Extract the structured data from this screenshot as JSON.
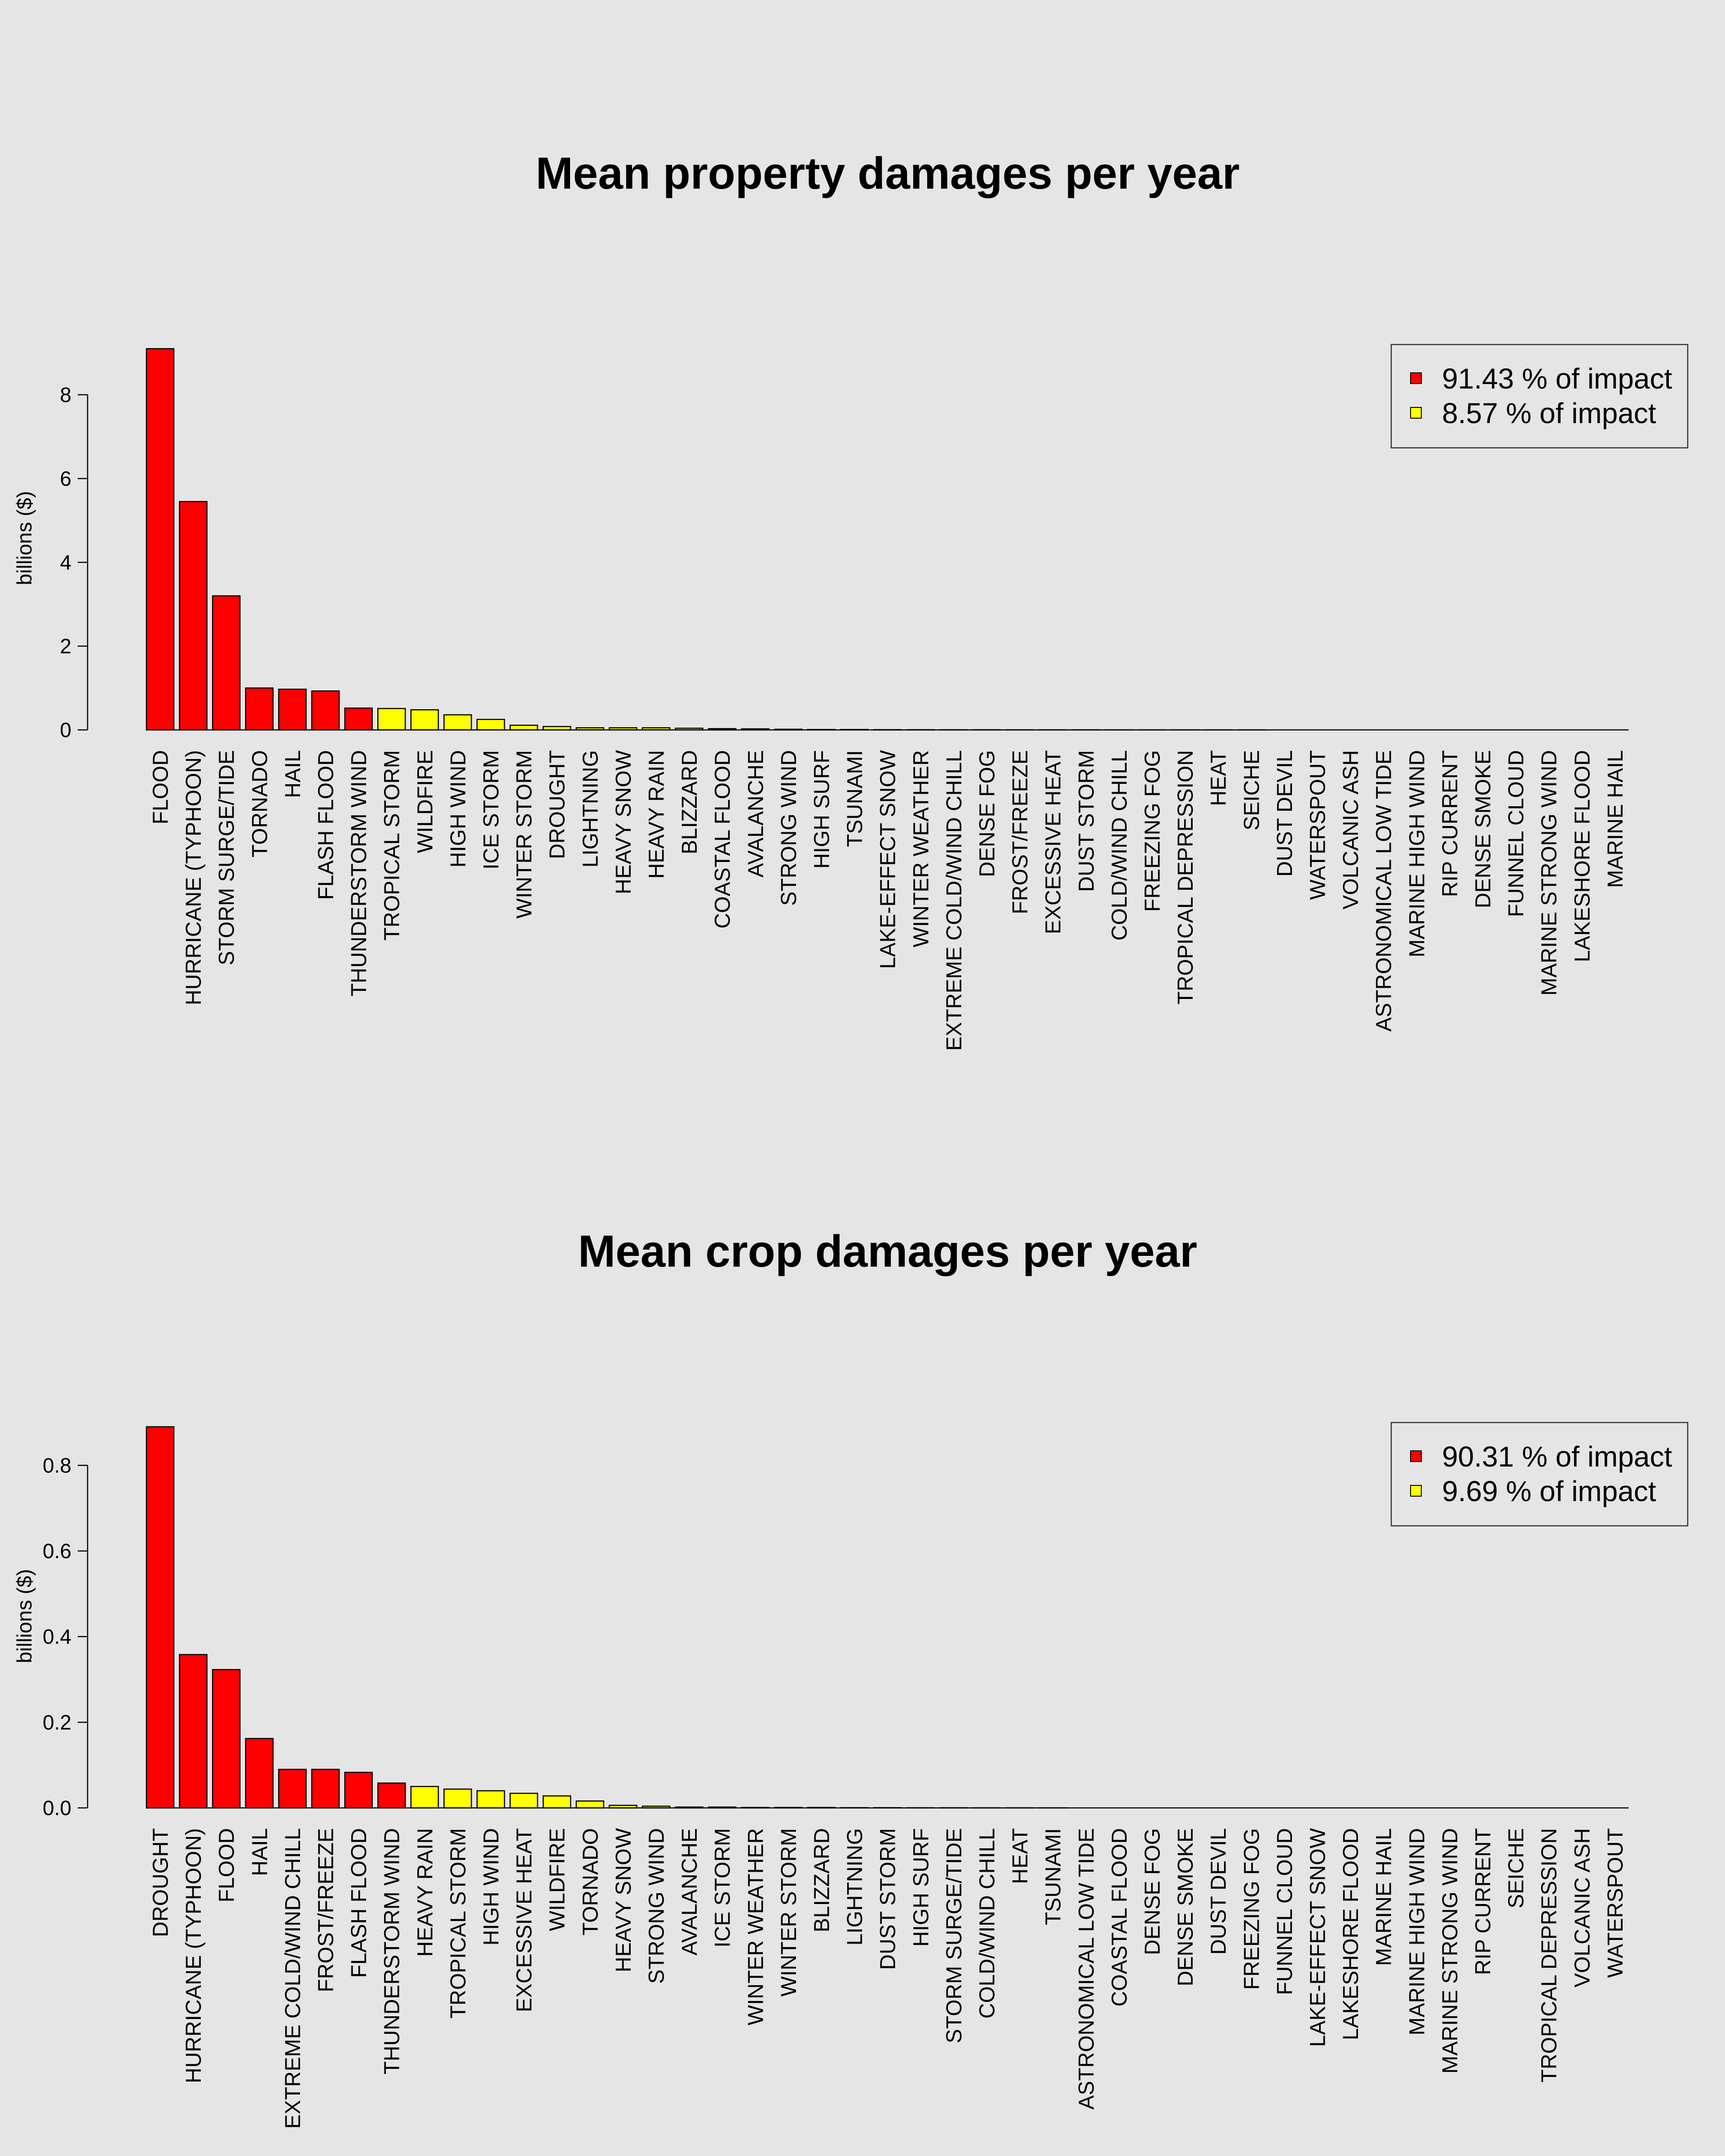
{
  "chart_data": [
    {
      "type": "bar",
      "title": "Mean property damages per year",
      "xlabel": "",
      "ylabel": "billions ($)",
      "ylim": [
        0,
        9.2
      ],
      "yticks": [
        0,
        2,
        4,
        6,
        8
      ],
      "ytick_labels": [
        "0",
        "2",
        "4",
        "6",
        "8"
      ],
      "grid": false,
      "legend_position": "top-right",
      "legend": [
        {
          "label": "91.43 % of impact",
          "color": "#ff0000"
        },
        {
          "label": "8.57 % of impact",
          "color": "#ffff00"
        }
      ],
      "categories": [
        "FLOOD",
        "HURRICANE (TYPHOON)",
        "STORM SURGE/TIDE",
        "TORNADO",
        "HAIL",
        "FLASH FLOOD",
        "THUNDERSTORM WIND",
        "TROPICAL STORM",
        "WILDFIRE",
        "HIGH WIND",
        "ICE STORM",
        "WINTER STORM",
        "DROUGHT",
        "LIGHTNING",
        "HEAVY SNOW",
        "HEAVY RAIN",
        "BLIZZARD",
        "COASTAL FLOOD",
        "AVALANCHE",
        "STRONG WIND",
        "HIGH SURF",
        "TSUNAMI",
        "LAKE-EFFECT SNOW",
        "WINTER WEATHER",
        "EXTREME COLD/WIND CHILL",
        "DENSE FOG",
        "FROST/FREEZE",
        "EXCESSIVE HEAT",
        "DUST STORM",
        "COLD/WIND CHILL",
        "FREEZING FOG",
        "TROPICAL DEPRESSION",
        "HEAT",
        "SEICHE",
        "DUST DEVIL",
        "WATERSPOUT",
        "VOLCANIC ASH",
        "ASTRONOMICAL LOW TIDE",
        "MARINE HIGH WIND",
        "RIP CURRENT",
        "DENSE SMOKE",
        "FUNNEL CLOUD",
        "MARINE STRONG WIND",
        "LAKESHORE FLOOD",
        "MARINE HAIL"
      ],
      "values": [
        9.1,
        5.45,
        3.2,
        1.0,
        0.97,
        0.93,
        0.52,
        0.51,
        0.48,
        0.36,
        0.25,
        0.11,
        0.08,
        0.05,
        0.05,
        0.05,
        0.04,
        0.03,
        0.025,
        0.015,
        0.01,
        0.01,
        0.005,
        0.004,
        0.003,
        0.003,
        0.002,
        0.002,
        0.002,
        0.001,
        0.001,
        0.001,
        0.001,
        0.001,
        0.0005,
        0.0005,
        0.0005,
        0.0005,
        0.0003,
        0.0003,
        0.0002,
        0.0002,
        0.0001,
        0.0001,
        0.0
      ],
      "colors": [
        "#ff0000",
        "#ff0000",
        "#ff0000",
        "#ff0000",
        "#ff0000",
        "#ff0000",
        "#ff0000",
        "#ffff00",
        "#ffff00",
        "#ffff00",
        "#ffff00",
        "#ffff00",
        "#ffff00",
        "#ffff00",
        "#ffff00",
        "#ffff00",
        "#ffff00",
        "#ffff00",
        "#ffff00",
        "#ffff00",
        "#ffff00",
        "#ffff00",
        "#ffff00",
        "#ffff00",
        "#ffff00",
        "#ffff00",
        "#ffff00",
        "#ffff00",
        "#ffff00",
        "#ffff00",
        "#ffff00",
        "#ffff00",
        "#ffff00",
        "#ffff00",
        "#ffff00",
        "#ffff00",
        "#ffff00",
        "#ffff00",
        "#ffff00",
        "#ffff00",
        "#ffff00",
        "#ffff00",
        "#ffff00",
        "#ffff00",
        "#ffff00"
      ]
    },
    {
      "type": "bar",
      "title": "Mean crop damages per year",
      "xlabel": "",
      "ylabel": "billions ($)",
      "ylim": [
        0,
        0.9
      ],
      "yticks": [
        0,
        0.2,
        0.4,
        0.6,
        0.8
      ],
      "ytick_labels": [
        "0.0",
        "0.2",
        "0.4",
        "0.6",
        "0.8"
      ],
      "grid": false,
      "legend_position": "top-right",
      "legend": [
        {
          "label": "90.31 % of impact",
          "color": "#ff0000"
        },
        {
          "label": "9.69 % of impact",
          "color": "#ffff00"
        }
      ],
      "categories": [
        "DROUGHT",
        "HURRICANE (TYPHOON)",
        "FLOOD",
        "HAIL",
        "EXTREME COLD/WIND CHILL",
        "FROST/FREEZE",
        "FLASH FLOOD",
        "THUNDERSTORM WIND",
        "HEAVY RAIN",
        "TROPICAL STORM",
        "HIGH WIND",
        "EXCESSIVE HEAT",
        "WILDFIRE",
        "TORNADO",
        "HEAVY SNOW",
        "STRONG WIND",
        "AVALANCHE",
        "ICE STORM",
        "WINTER WEATHER",
        "WINTER STORM",
        "BLIZZARD",
        "LIGHTNING",
        "DUST STORM",
        "HIGH SURF",
        "STORM SURGE/TIDE",
        "COLD/WIND CHILL",
        "HEAT",
        "TSUNAMI",
        "ASTRONOMICAL LOW TIDE",
        "COASTAL FLOOD",
        "DENSE FOG",
        "DENSE SMOKE",
        "DUST DEVIL",
        "FREEZING FOG",
        "FUNNEL CLOUD",
        "LAKE-EFFECT SNOW",
        "LAKESHORE FLOOD",
        "MARINE HAIL",
        "MARINE HIGH WIND",
        "MARINE STRONG WIND",
        "RIP CURRENT",
        "SEICHE",
        "TROPICAL DEPRESSION",
        "VOLCANIC ASH",
        "WATERSPOUT"
      ],
      "values": [
        0.89,
        0.358,
        0.323,
        0.162,
        0.09,
        0.09,
        0.083,
        0.058,
        0.05,
        0.044,
        0.04,
        0.034,
        0.028,
        0.016,
        0.006,
        0.004,
        0.002,
        0.002,
        0.001,
        0.001,
        0.001,
        0.0005,
        0.0005,
        0.0003,
        0.0003,
        0.0002,
        0.0002,
        0.0001,
        0,
        0,
        0,
        0,
        0,
        0,
        0,
        0,
        0,
        0,
        0,
        0,
        0,
        0,
        0,
        0,
        0
      ],
      "colors": [
        "#ff0000",
        "#ff0000",
        "#ff0000",
        "#ff0000",
        "#ff0000",
        "#ff0000",
        "#ff0000",
        "#ff0000",
        "#ffff00",
        "#ffff00",
        "#ffff00",
        "#ffff00",
        "#ffff00",
        "#ffff00",
        "#ffff00",
        "#ffff00",
        "#ffff00",
        "#ffff00",
        "#ffff00",
        "#ffff00",
        "#ffff00",
        "#ffff00",
        "#ffff00",
        "#ffff00",
        "#ffff00",
        "#ffff00",
        "#ffff00",
        "#ffff00",
        "#ffff00",
        "#ffff00",
        "#ffff00",
        "#ffff00",
        "#ffff00",
        "#ffff00",
        "#ffff00",
        "#ffff00",
        "#ffff00",
        "#ffff00",
        "#ffff00",
        "#ffff00",
        "#ffff00",
        "#ffff00",
        "#ffff00",
        "#ffff00",
        "#ffff00"
      ]
    }
  ]
}
